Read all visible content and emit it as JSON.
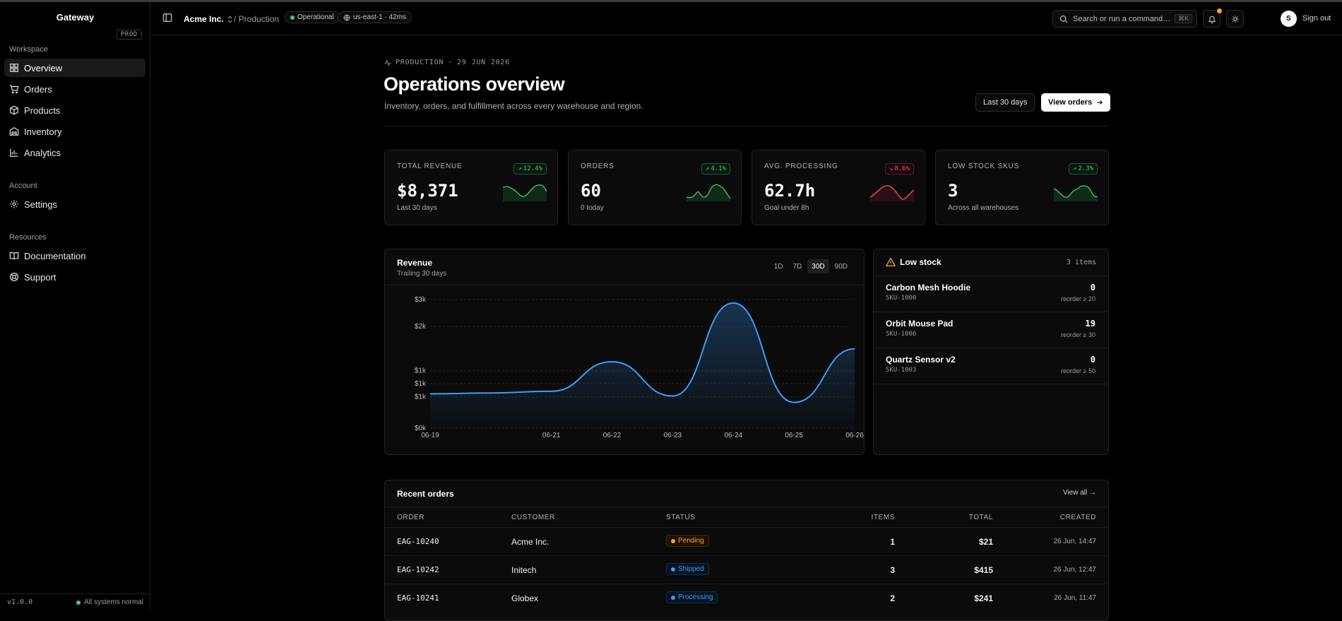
{
  "sidebar": {
    "brand": "Gateway",
    "env_badge": "PROD",
    "sections": [
      {
        "label": "Workspace",
        "items": [
          {
            "label": "Overview",
            "icon": "grid-icon",
            "active": true
          },
          {
            "label": "Orders",
            "icon": "cart-icon"
          },
          {
            "label": "Products",
            "icon": "box-icon"
          },
          {
            "label": "Inventory",
            "icon": "warehouse-icon"
          },
          {
            "label": "Analytics",
            "icon": "bar-chart-icon"
          }
        ]
      },
      {
        "label": "Account",
        "items": [
          {
            "label": "Settings",
            "icon": "gear-icon"
          }
        ]
      },
      {
        "label": "Resources",
        "items": [
          {
            "label": "Documentation",
            "icon": "book-icon"
          },
          {
            "label": "Support",
            "icon": "lifebuoy-icon"
          }
        ]
      }
    ],
    "version": "v1.0.0",
    "system_status": "All systems normal"
  },
  "topbar": {
    "org": "Acme Inc.",
    "breadcrumb": "/ Production",
    "status_pill": "Operational",
    "region_pill": "us-east-1 · 42ms",
    "search_placeholder": "Search or run a command…",
    "search_shortcut": "⌘K",
    "avatar_initial": "S",
    "sign_out": "Sign out"
  },
  "header": {
    "eyebrow_env": "PRODUCTION",
    "eyebrow_sep": "·",
    "eyebrow_date": "29 JUN 2026",
    "title": "Operations overview",
    "subtitle": "Inventory, orders, and fulfillment across every warehouse and region.",
    "range_button": "Last 30 days",
    "primary_button": "View orders"
  },
  "stats": [
    {
      "label": "TOTAL REVENUE",
      "value": "$8,371",
      "sub": "Last 30 days",
      "delta": "12.4%",
      "direction": "up"
    },
    {
      "label": "ORDERS",
      "value": "60",
      "sub": "0 today",
      "delta": "4.1%",
      "direction": "up"
    },
    {
      "label": "AVG. PROCESSING",
      "value": "62.7h",
      "sub": "Goal under 8h",
      "delta": "8.6%",
      "direction": "down"
    },
    {
      "label": "LOW STOCK SKUS",
      "value": "3",
      "sub": "Across all warehouses",
      "delta": "2.3%",
      "direction": "up"
    }
  ],
  "revenue_card": {
    "title": "Revenue",
    "subtitle": "Trailing 30 days",
    "ranges": [
      "1D",
      "7D",
      "30D",
      "90D"
    ],
    "active_range": "30D"
  },
  "chart_data": {
    "type": "area",
    "x": [
      "06-19",
      "06-20",
      "06-21",
      "06-22",
      "06-23",
      "06-24",
      "06-25",
      "06-26"
    ],
    "series": [
      {
        "values": [
          800,
          820,
          860,
          1550,
          750,
          2920,
          600,
          1850
        ]
      }
    ],
    "yticks": [
      "$0k",
      "$1k",
      "$1k",
      "$1k",
      "$2k",
      "$3k"
    ],
    "ytick_values": [
      0,
      730,
      1040,
      1340,
      2370,
      3000
    ],
    "ylim": [
      0,
      3000
    ],
    "xticks": [
      "06-19",
      "06-21",
      "06-22",
      "06-23",
      "06-24",
      "06-25",
      "06-26"
    ],
    "xtick_positions": [
      0,
      2,
      3,
      4,
      5,
      6,
      7
    ],
    "grid": true,
    "line_color": "#3b9dff"
  },
  "low_stock": {
    "title": "Low stock",
    "count": "3 items",
    "items": [
      {
        "name": "Carbon Mesh Hoodie",
        "sku": "SKU-1000",
        "qty": "0",
        "reorder": "reorder ≥ 20"
      },
      {
        "name": "Orbit Mouse Pad",
        "sku": "SKU-1006",
        "qty": "19",
        "reorder": "reorder ≥ 30"
      },
      {
        "name": "Quartz Sensor v2",
        "sku": "SKU-1003",
        "qty": "0",
        "reorder": "reorder ≥ 50"
      }
    ]
  },
  "recent_orders": {
    "title": "Recent orders",
    "view_all": "View all",
    "columns": [
      "ORDER",
      "CUSTOMER",
      "STATUS",
      "ITEMS",
      "TOTAL",
      "CREATED"
    ],
    "rows": [
      {
        "order": "EAG-10240",
        "customer": "Acme Inc.",
        "status": "Pending",
        "items": "1",
        "total": "$21",
        "created": "26 Jun, 14:47"
      },
      {
        "order": "EAG-10242",
        "customer": "Initech",
        "status": "Shipped",
        "items": "3",
        "total": "$415",
        "created": "26 Jun, 12:47"
      },
      {
        "order": "EAG-10241",
        "customer": "Globex",
        "status": "Processing",
        "items": "2",
        "total": "$241",
        "created": "26 Jun, 11:47"
      }
    ]
  },
  "colors": {
    "up": "#3ecf72",
    "down": "#ff4e6c",
    "accent": "#3b9dff",
    "warning": "#f5a623"
  }
}
